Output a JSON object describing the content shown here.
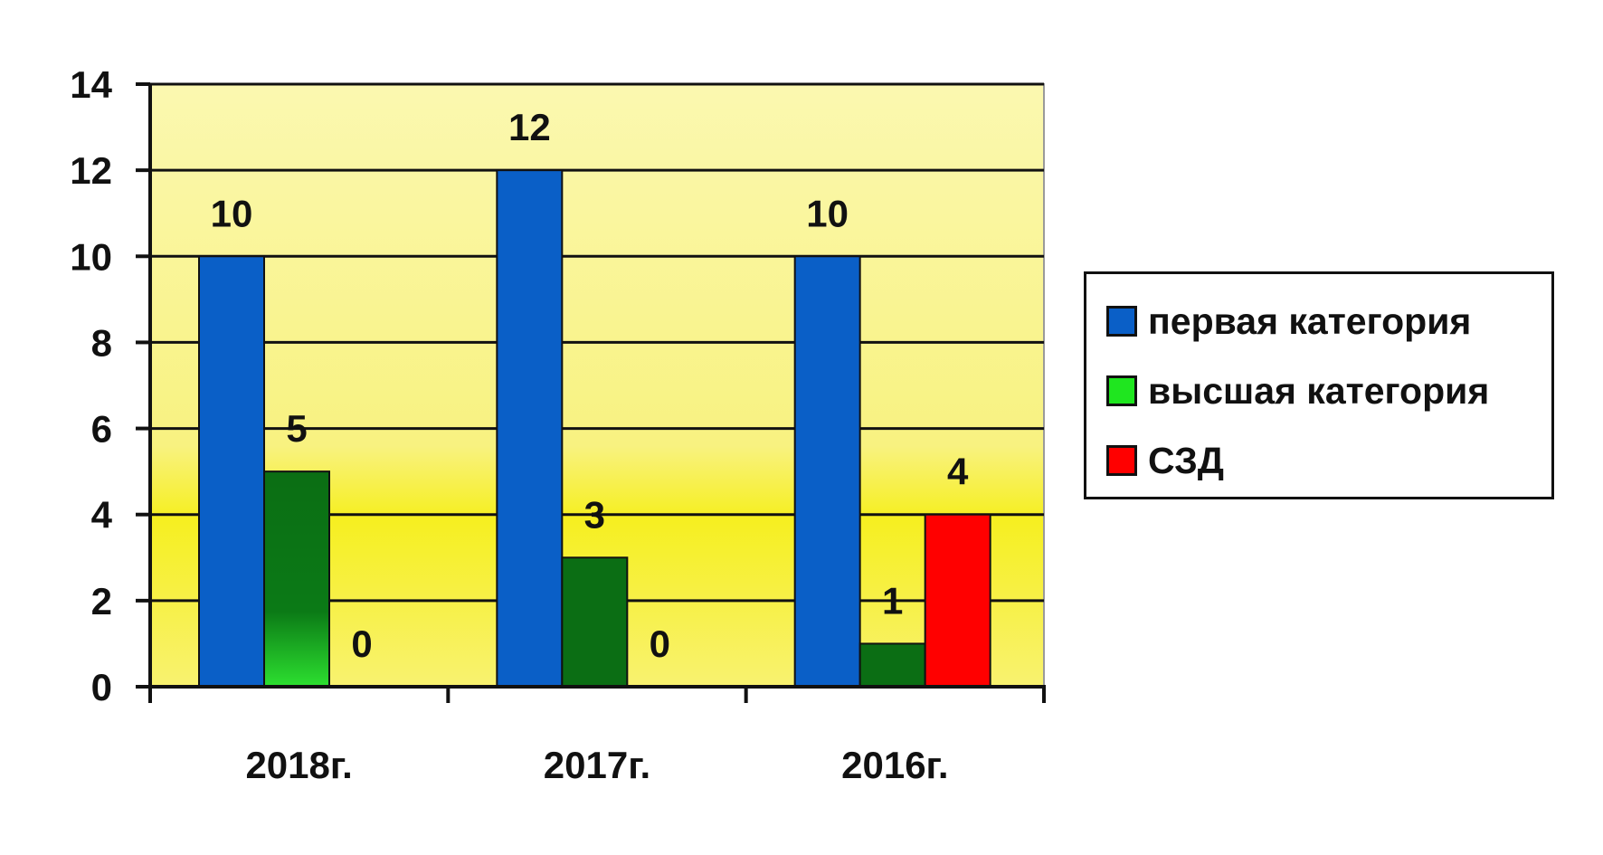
{
  "chart_data": {
    "type": "bar",
    "categories": [
      "2018г.",
      "2017г.",
      "2016г."
    ],
    "series": [
      {
        "name": "первая категория",
        "values": [
          10,
          12,
          10
        ],
        "color": "#0a5fc7"
      },
      {
        "name": "высшая категория",
        "values": [
          5,
          3,
          1
        ],
        "color": "#0b6e14"
      },
      {
        "name": "СЗД",
        "values": [
          0,
          0,
          4
        ],
        "color": "#ff0000"
      }
    ],
    "data_labels": [
      [
        "10",
        "12",
        "10"
      ],
      [
        "5",
        "3",
        "1"
      ],
      [
        "0",
        "0",
        "4"
      ]
    ],
    "legend_swatch_colors": [
      "#0a5fc7",
      "#1fe61f",
      "#ff0000"
    ],
    "y_ticks": [
      "0",
      "2",
      "4",
      "6",
      "8",
      "10",
      "12",
      "14"
    ],
    "ylim": [
      0,
      14
    ],
    "grid": true,
    "legend_position": "right",
    "colors": {
      "plot_background_top": "#fbf7a6",
      "plot_background_bottom": "#f6f000",
      "grid": "#111111"
    }
  }
}
